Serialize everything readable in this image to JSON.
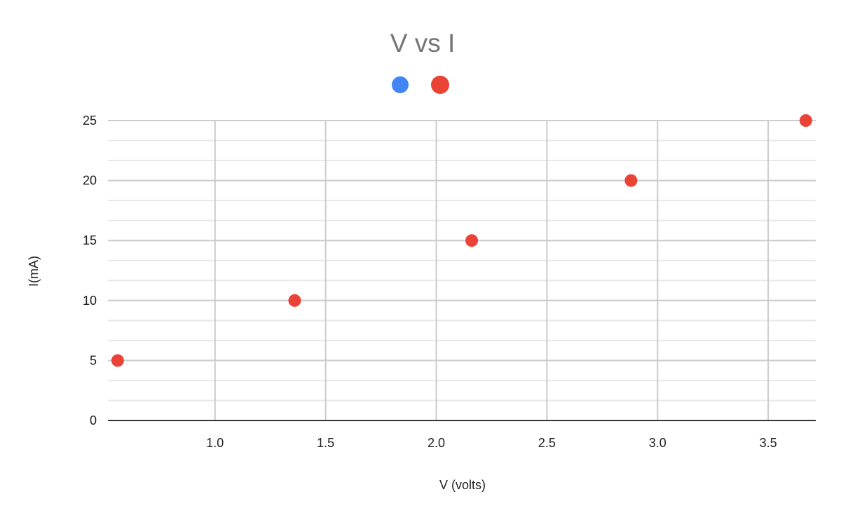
{
  "chart_data": {
    "type": "scatter",
    "title": "V vs I",
    "xlabel": "V (volts)",
    "ylabel": "I(mA)",
    "xlim": [
      0.516,
      3.715
    ],
    "ylim": [
      0,
      25
    ],
    "x_ticks": [
      "1.0",
      "1.5",
      "2.0",
      "2.5",
      "3.0",
      "3.5"
    ],
    "x_tick_values": [
      1.0,
      1.5,
      2.0,
      2.5,
      3.0,
      3.5
    ],
    "y_ticks": [
      "0",
      "5",
      "10",
      "15",
      "20",
      "25"
    ],
    "y_tick_values": [
      0,
      5,
      10,
      15,
      20,
      25
    ],
    "y_minor_step": 1.6667,
    "grid": true,
    "legend_position": "top",
    "legend": [
      {
        "name": "",
        "color": "#4285f4"
      },
      {
        "name": "",
        "color": "#ea4335"
      }
    ],
    "series": [
      {
        "name": "",
        "color": "#ea4335",
        "x": [
          0.56,
          1.36,
          2.16,
          2.88,
          3.67
        ],
        "y": [
          5,
          10,
          15,
          20,
          25
        ]
      }
    ]
  },
  "colors": {
    "grid_major": "#cccccc",
    "grid_minor": "#e8e8e8",
    "baseline": "#333333",
    "title": "#757575",
    "tick_text": "#222222"
  }
}
